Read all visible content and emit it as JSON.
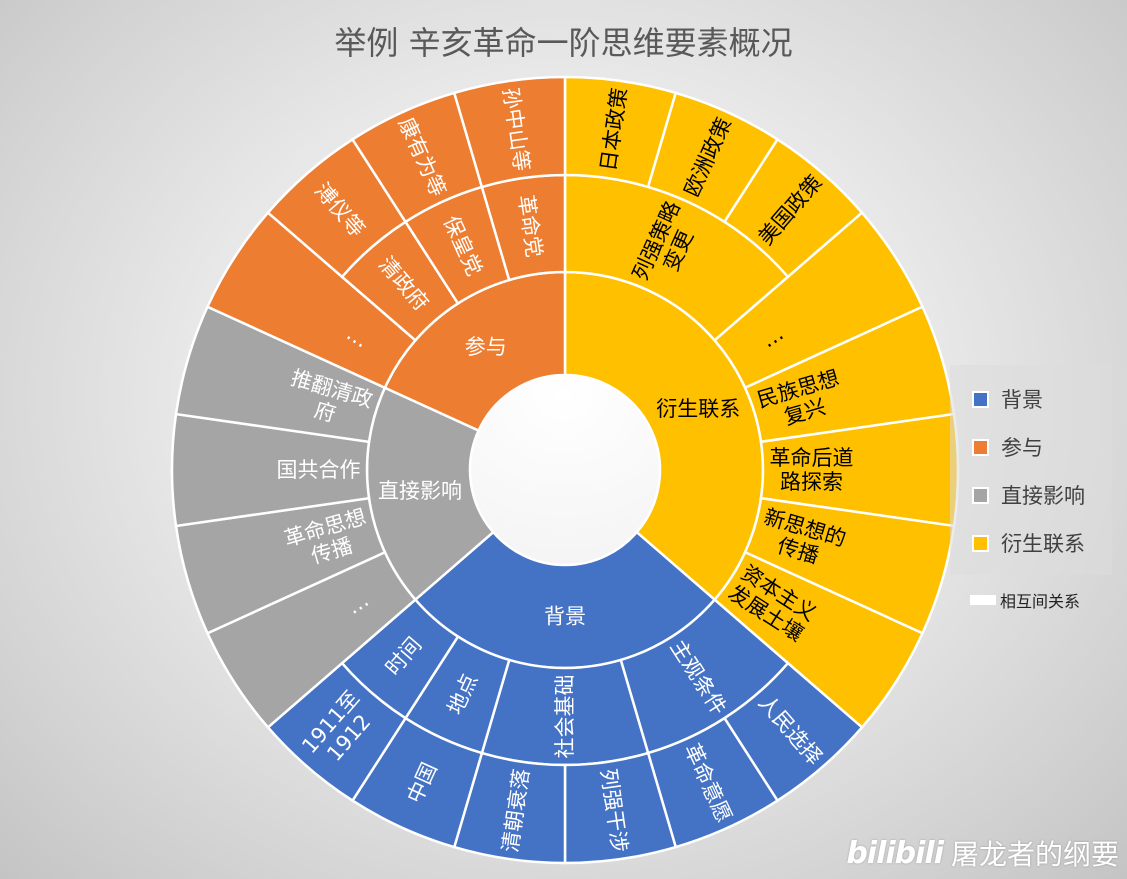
{
  "chart_data": {
    "type": "sunburst",
    "title": "举例 辛亥革命一阶思维要素概况",
    "colors": {
      "背景": "#4472C4",
      "参与": "#ED7D31",
      "直接影响": "#A5A5A5",
      "衍生联系": "#FFC000"
    },
    "legend": {
      "placement": "right",
      "entries": [
        "背景",
        "参与",
        "直接影响",
        "衍生联系"
      ],
      "extra_label": "相互间关系"
    },
    "root": [
      {
        "name": "衍生联系",
        "children": [
          {
            "name": "列强策略变更",
            "children": [
              {
                "name": "日本政策",
                "value": 1
              },
              {
                "name": "欧洲政策",
                "value": 1
              },
              {
                "name": "美国政策",
                "value": 1
              }
            ]
          },
          {
            "name": "…",
            "value": 1
          },
          {
            "name": "民族思想复兴",
            "value": 1
          },
          {
            "name": "革命后道路探索",
            "value": 1
          },
          {
            "name": "新思想的传播",
            "value": 1
          },
          {
            "name": "资本主义发展土壤",
            "value": 1
          }
        ]
      },
      {
        "name": "背景",
        "children": [
          {
            "name": "主观条件",
            "children": [
              {
                "name": "人民选择",
                "value": 1
              },
              {
                "name": "革命意愿",
                "value": 1
              }
            ]
          },
          {
            "name": "社会基础",
            "children": [
              {
                "name": "列强干涉",
                "value": 1
              },
              {
                "name": "清朝衰落",
                "value": 1
              }
            ]
          },
          {
            "name": "地点",
            "children": [
              {
                "name": "中国",
                "value": 1
              }
            ]
          },
          {
            "name": "时间",
            "children": [
              {
                "name": "1911至1912",
                "value": 1
              }
            ]
          }
        ]
      },
      {
        "name": "直接影响",
        "children": [
          {
            "name": "…",
            "value": 1
          },
          {
            "name": "革命思想传播",
            "value": 1
          },
          {
            "name": "国共合作",
            "value": 1
          },
          {
            "name": "推翻清政府",
            "value": 1
          }
        ]
      },
      {
        "name": "参与",
        "children": [
          {
            "name": "…",
            "value": 1
          },
          {
            "name": "清政府",
            "children": [
              {
                "name": "溥仪等",
                "value": 1
              }
            ]
          },
          {
            "name": "保皇党",
            "children": [
              {
                "name": "康有为等",
                "value": 1
              }
            ]
          },
          {
            "name": "革命党",
            "children": [
              {
                "name": "孙中山等",
                "value": 1
              }
            ]
          }
        ]
      }
    ]
  },
  "watermark": {
    "logo": "bilibili",
    "author": "屠龙者的纲要"
  }
}
